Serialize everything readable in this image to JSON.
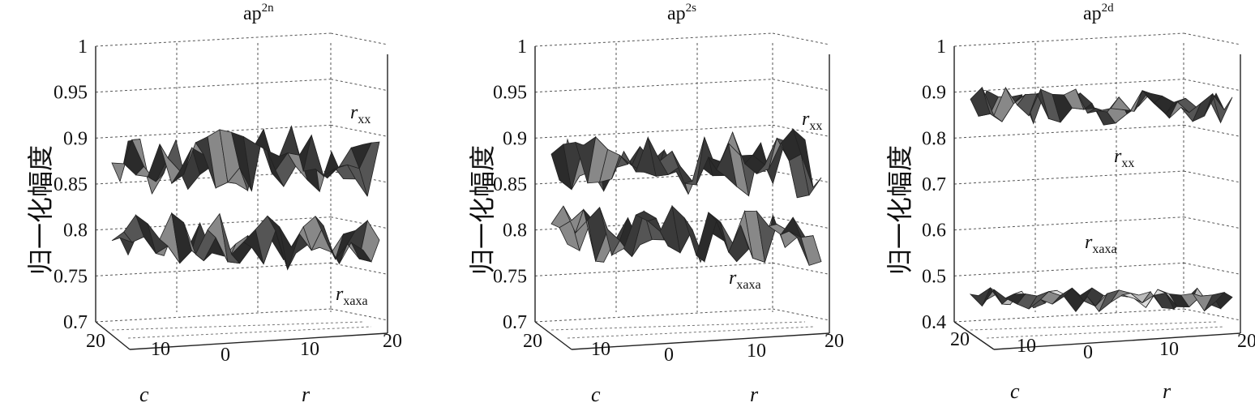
{
  "chart_data": [
    {
      "type": "surface",
      "title_base": "ap",
      "title_sup": "2n",
      "ylabel": "归一化幅度",
      "zlim": [
        0.7,
        1
      ],
      "zticks": [
        "1",
        "0.95",
        "0.9",
        "0.85",
        "0.8",
        "0.75",
        "0.7"
      ],
      "c_ticks": [
        "20",
        "10"
      ],
      "r_ticks": [
        "0",
        "10",
        "20"
      ],
      "c_label": "c",
      "r_label": "r",
      "grid": true,
      "series": [
        {
          "name_base": "r",
          "name_sub": "xx",
          "mean": 0.88,
          "spread": 0.035
        },
        {
          "name_base": "r",
          "name_sub": "xaxa",
          "mean": 0.79,
          "spread": 0.03
        }
      ]
    },
    {
      "type": "surface",
      "title_base": "ap",
      "title_sup": "2s",
      "ylabel": "归一化幅度",
      "zlim": [
        0.7,
        1
      ],
      "zticks": [
        "1",
        "0.95",
        "0.9",
        "0.85",
        "0.8",
        "0.75",
        "0.7"
      ],
      "c_ticks": [
        "20",
        "10"
      ],
      "r_ticks": [
        "0",
        "10",
        "20"
      ],
      "c_label": "c",
      "r_label": "r",
      "grid": true,
      "series": [
        {
          "name_base": "r",
          "name_sub": "xx",
          "mean": 0.88,
          "spread": 0.035
        },
        {
          "name_base": "r",
          "name_sub": "xaxa",
          "mean": 0.8,
          "spread": 0.03
        }
      ]
    },
    {
      "type": "surface",
      "title_base": "ap",
      "title_sup": "2d",
      "ylabel": "归一化幅度",
      "zlim": [
        0.4,
        1
      ],
      "zticks": [
        "1",
        "0.9",
        "0.8",
        "0.7",
        "0.6",
        "0.5",
        "0.4"
      ],
      "c_ticks": [
        "20",
        "10"
      ],
      "r_ticks": [
        "0",
        "10",
        "20"
      ],
      "c_label": "c",
      "r_label": "r",
      "grid": true,
      "series": [
        {
          "name_base": "r",
          "name_sub": "xx",
          "mean": 0.88,
          "spread": 0.04
        },
        {
          "name_base": "r",
          "name_sub": "xaxa",
          "mean": 0.46,
          "spread": 0.025
        }
      ]
    }
  ]
}
